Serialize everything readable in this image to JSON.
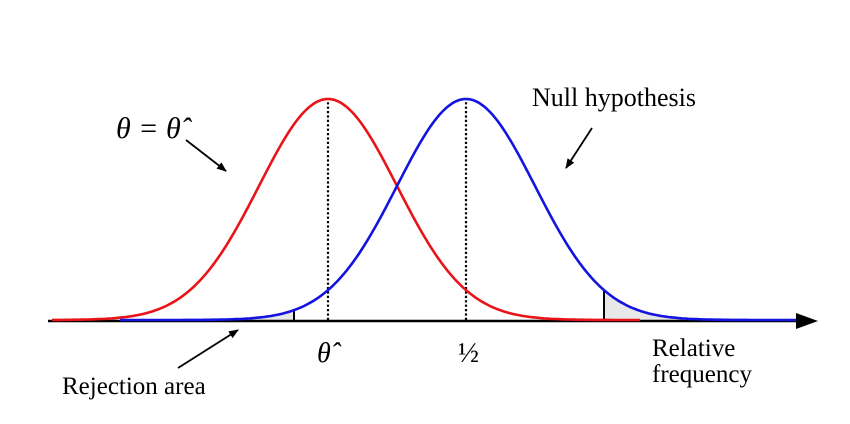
{
  "labels": {
    "theta_eq_hat": "θ = θ̂",
    "null_hypothesis": "Null hypothesis",
    "theta_hat_tick": "θ̂",
    "half_tick": "½",
    "x_axis_line1": "Relative",
    "x_axis_line2": "frequency",
    "rejection_area": "Rejection area"
  },
  "curves": {
    "estimate": {
      "mean": 0.3,
      "sd": 0.1,
      "color": "#e8141a"
    },
    "null": {
      "mean": 0.5,
      "sd": 0.1,
      "color": "#1414e0"
    }
  },
  "rejection": {
    "lower_bound": 0.25,
    "upper_bound": 0.7,
    "fill_color": "#e8e8e8"
  },
  "colors": {
    "axis": "#000000",
    "dotted": "#000000"
  }
}
